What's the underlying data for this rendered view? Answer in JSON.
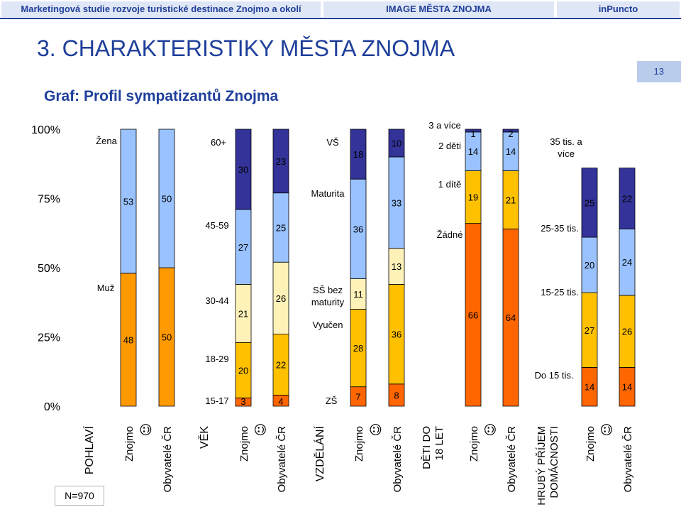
{
  "header": {
    "left": "Marketingová studie rozvoje turistické destinace Znojmo a okolí",
    "center": "IMAGE MĚSTA ZNOJMA",
    "right": "inPuncto"
  },
  "title": "3. CHARAKTERISTIKY MĚSTA ZNOJMA",
  "page_number": "13",
  "n_label": "N=970",
  "colors": {
    "header_text": "#1f3f9a",
    "c1": "#ff6600",
    "c2": "#ffd966",
    "c3": "#fff2b8",
    "c4": "#ffc000",
    "c5": "#99c2ff",
    "c6": "#333399"
  },
  "chart_data": {
    "type": "bar",
    "stacked": true,
    "title": "Graf: Profil sympatizantů Znojma",
    "ylim": [
      0,
      100
    ],
    "y_ticks": [
      "0%",
      "25%",
      "50%",
      "75%",
      "100%"
    ],
    "smiley": "☺",
    "groups": [
      {
        "name": "POHLAVÍ",
        "bars": [
          {
            "label": "Znojmo",
            "values": [
              48,
              53
            ]
          },
          {
            "label": "Obyvatelé ČR",
            "values": [
              50,
              50
            ]
          }
        ],
        "segment_colors": [
          "#ff9900",
          "#99c2ff"
        ],
        "category_labels": [
          "Muž",
          "Žena"
        ]
      },
      {
        "name": "VĚK",
        "bars": [
          {
            "label": "Znojmo",
            "values": [
              3,
              20,
              21,
              27,
              30
            ]
          },
          {
            "label": "Obyvatelé ČR",
            "values": [
              4,
              22,
              26,
              25,
              23
            ]
          }
        ],
        "segment_colors": [
          "#ff6600",
          "#ffc000",
          "#fff2b8",
          "#99c2ff",
          "#333399"
        ],
        "category_labels": [
          "15-17",
          "18-29",
          "30-44",
          "45-59",
          "60+"
        ]
      },
      {
        "name": "VZDĚLÁNÍ",
        "bars": [
          {
            "label": "Znojmo",
            "values": [
              7,
              28,
              11,
              36,
              18
            ]
          },
          {
            "label": "Obyvatelé ČR",
            "values": [
              8,
              36,
              13,
              33,
              10
            ]
          }
        ],
        "segment_colors": [
          "#ff6600",
          "#ffc000",
          "#fff2b8",
          "#99c2ff",
          "#333399"
        ],
        "category_labels": [
          "ZŠ",
          "Vyučen",
          "SŠ bez maturity",
          "Maturita",
          "VŠ"
        ]
      },
      {
        "name": "DĚTI DO 18 LET",
        "bars": [
          {
            "label": "Znojmo",
            "values": [
              66,
              19,
              14,
              1
            ]
          },
          {
            "label": "Obyvatelé ČR",
            "values": [
              64,
              21,
              14,
              2
            ]
          }
        ],
        "segment_colors": [
          "#ff6600",
          "#ffc000",
          "#99c2ff",
          "#333399"
        ],
        "category_labels": [
          "Žádné",
          "1 dítě",
          "2 děti",
          "3 a více"
        ]
      },
      {
        "name": "HRUBÝ PŘÍJEM DOMÁCNOSTI",
        "bars": [
          {
            "label": "Znojmo",
            "values": [
              14,
              27,
              20,
              25
            ]
          },
          {
            "label": "Obyvatelé ČR",
            "values": [
              14,
              26,
              24,
              22
            ]
          }
        ],
        "segment_colors": [
          "#ff6600",
          "#ffc000",
          "#99c2ff",
          "#333399"
        ],
        "category_labels": [
          "Do 15 tis.",
          "15-25 tis.",
          "25-35 tis.",
          "35 tis. a více"
        ]
      }
    ]
  }
}
